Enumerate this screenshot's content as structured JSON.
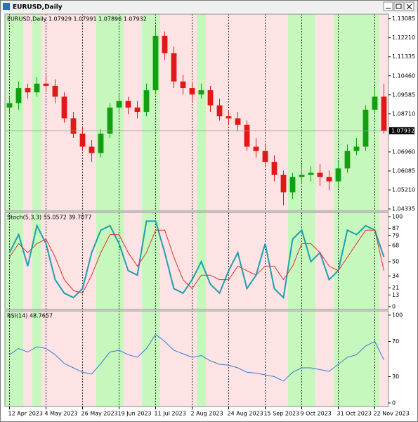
{
  "window_title": "EURUSD,Daily",
  "chart_data": [
    {
      "type": "candlestick",
      "label": "EURUSD,Daily  1.07929 1.07991 1.07896 1.07932",
      "categories": [
        "12 Apr 2023",
        null,
        null,
        null,
        "4 May 2023",
        null,
        null,
        null,
        "26 May 2023",
        null,
        null,
        null,
        "19 Jun 2023",
        null,
        null,
        null,
        "11 Jul 2023",
        null,
        null,
        null,
        "2 Aug 2023",
        null,
        null,
        null,
        "24 Aug 2023",
        null,
        null,
        null,
        "15 Sep 2023",
        null,
        null,
        null,
        "9 Oct 2023",
        null,
        null,
        null,
        "31 Oct 2023",
        null,
        null,
        null,
        "22 Nov 2023",
        null
      ],
      "open": [
        1.09,
        1.092,
        1.099,
        1.097,
        1.101,
        1.1,
        1.095,
        1.085,
        1.078,
        1.072,
        1.069,
        1.078,
        1.09,
        1.093,
        1.09,
        1.088,
        1.098,
        1.123,
        1.115,
        1.102,
        1.099,
        1.096,
        1.098,
        1.091,
        1.086,
        1.085,
        1.082,
        1.072,
        1.07,
        1.065,
        1.059,
        1.051,
        1.058,
        1.059,
        1.06,
        1.058,
        1.056,
        1.062,
        1.07,
        1.072,
        1.089,
        1.095
      ],
      "high": [
        1.095,
        1.102,
        1.101,
        1.104,
        1.105,
        1.103,
        1.097,
        1.088,
        1.081,
        1.075,
        1.08,
        1.092,
        1.096,
        1.095,
        1.093,
        1.101,
        1.127,
        1.125,
        1.118,
        1.105,
        1.102,
        1.101,
        1.1,
        1.094,
        1.089,
        1.088,
        1.084,
        1.076,
        1.073,
        1.068,
        1.061,
        1.06,
        1.064,
        1.063,
        1.064,
        1.061,
        1.065,
        1.073,
        1.076,
        1.091,
        1.099,
        1.101
      ],
      "low": [
        1.087,
        1.089,
        1.094,
        1.095,
        1.097,
        1.092,
        1.083,
        1.076,
        1.07,
        1.065,
        1.067,
        1.076,
        1.088,
        1.087,
        1.085,
        1.086,
        1.096,
        1.112,
        1.099,
        1.096,
        1.093,
        1.094,
        1.088,
        1.084,
        1.082,
        1.079,
        1.07,
        1.067,
        1.063,
        1.056,
        1.045,
        1.048,
        1.055,
        1.056,
        1.054,
        1.052,
        1.053,
        1.06,
        1.068,
        1.07,
        1.087,
        1.078
      ],
      "close": [
        1.092,
        1.099,
        1.097,
        1.101,
        1.1,
        1.095,
        1.085,
        1.078,
        1.072,
        1.069,
        1.078,
        1.09,
        1.093,
        1.09,
        1.088,
        1.098,
        1.123,
        1.115,
        1.102,
        1.099,
        1.096,
        1.098,
        1.091,
        1.086,
        1.085,
        1.082,
        1.072,
        1.07,
        1.065,
        1.059,
        1.051,
        1.058,
        1.059,
        1.06,
        1.058,
        1.056,
        1.062,
        1.07,
        1.072,
        1.089,
        1.095,
        1.0793
      ],
      "up_color": "#12a012",
      "down_color": "#e01818",
      "up_shade": "#c6f7bc",
      "down_shade": "#fde3e3",
      "ylim": [
        1.0424,
        1.133
      ],
      "yticks": [
        1.13085,
        {
          "value": 1.1221,
          "label": "1.12210"
        },
        1.11335,
        {
          "value": 1.1046,
          "label": "1.10460"
        },
        1.09585,
        {
          "value": 1.0871,
          "label": "1.08710"
        },
        {
          "value": 1.0696,
          "label": "1.06960"
        },
        1.06085,
        {
          "value": 1.0521,
          "label": "1.05210"
        },
        1.04335
      ],
      "price_marker": 1.07932
    },
    {
      "type": "line",
      "label": "Stoch(5,3,3) 55.0572 39.7077",
      "series": [
        {
          "color": "#1f9fb0",
          "values": [
            60,
            80,
            45,
            90,
            70,
            30,
            15,
            10,
            20,
            60,
            85,
            90,
            70,
            40,
            35,
            95,
            95,
            60,
            20,
            15,
            30,
            50,
            25,
            15,
            40,
            60,
            20,
            35,
            70,
            20,
            10,
            75,
            85,
            50,
            60,
            30,
            40,
            85,
            80,
            90,
            85,
            55
          ]
        },
        {
          "color": "#e03030",
          "values": [
            55,
            70,
            60,
            70,
            75,
            55,
            30,
            18,
            15,
            35,
            60,
            80,
            80,
            60,
            45,
            60,
            85,
            85,
            55,
            30,
            20,
            35,
            35,
            30,
            30,
            45,
            40,
            35,
            45,
            45,
            30,
            45,
            70,
            70,
            60,
            45,
            40,
            55,
            70,
            85,
            85,
            40
          ]
        }
      ],
      "ylim": [
        0,
        100
      ],
      "yticks": [
        100,
        87,
        79,
        68,
        50,
        34,
        21,
        13,
        0
      ]
    },
    {
      "type": "line",
      "label": "RSI(14) 48.7657",
      "series": [
        {
          "color": "#3a78d8",
          "values": [
            55,
            62,
            58,
            64,
            62,
            55,
            45,
            40,
            35,
            33,
            45,
            58,
            60,
            55,
            52,
            62,
            78,
            70,
            60,
            56,
            52,
            54,
            48,
            44,
            43,
            40,
            35,
            34,
            32,
            30,
            25,
            35,
            40,
            40,
            38,
            36,
            44,
            52,
            55,
            65,
            70,
            49
          ]
        }
      ],
      "ylim": [
        0,
        100
      ],
      "yticks": [
        100,
        70,
        30,
        0
      ]
    }
  ]
}
